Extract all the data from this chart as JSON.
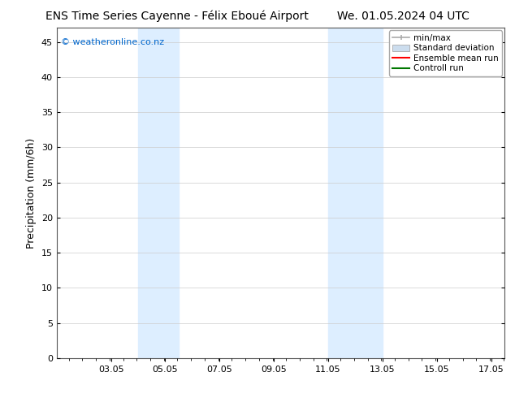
{
  "title_left": "ENS Time Series Cayenne - Félix Eboué Airport",
  "title_right": "We. 01.05.2024 04 UTC",
  "ylabel": "Precipitation (mm/6h)",
  "watermark": "© weatheronline.co.nz",
  "watermark_color": "#0066cc",
  "xmin": 1.05,
  "xmax": 17.55,
  "ymin": 0,
  "ymax": 47,
  "yticks": [
    0,
    5,
    10,
    15,
    20,
    25,
    30,
    35,
    40,
    45
  ],
  "xtick_labels": [
    "03.05",
    "05.05",
    "07.05",
    "09.05",
    "11.05",
    "13.05",
    "15.05",
    "17.05"
  ],
  "xtick_positions": [
    3.05,
    5.05,
    7.05,
    9.05,
    11.05,
    13.05,
    15.05,
    17.05
  ],
  "shaded_regions": [
    {
      "xstart": 4.05,
      "xend": 5.55,
      "color": "#ddeeff"
    },
    {
      "xstart": 11.05,
      "xend": 13.05,
      "color": "#ddeeff"
    }
  ],
  "legend_items": [
    {
      "label": "min/max",
      "color": "#aaaaaa"
    },
    {
      "label": "Standard deviation",
      "color": "#ccddee"
    },
    {
      "label": "Ensemble mean run",
      "color": "#ff0000"
    },
    {
      "label": "Controll run",
      "color": "#007700"
    }
  ],
  "bg_color": "#ffffff",
  "plot_bg_color": "#ffffff",
  "grid_color": "#cccccc",
  "title_fontsize": 10,
  "label_fontsize": 9,
  "tick_fontsize": 8
}
